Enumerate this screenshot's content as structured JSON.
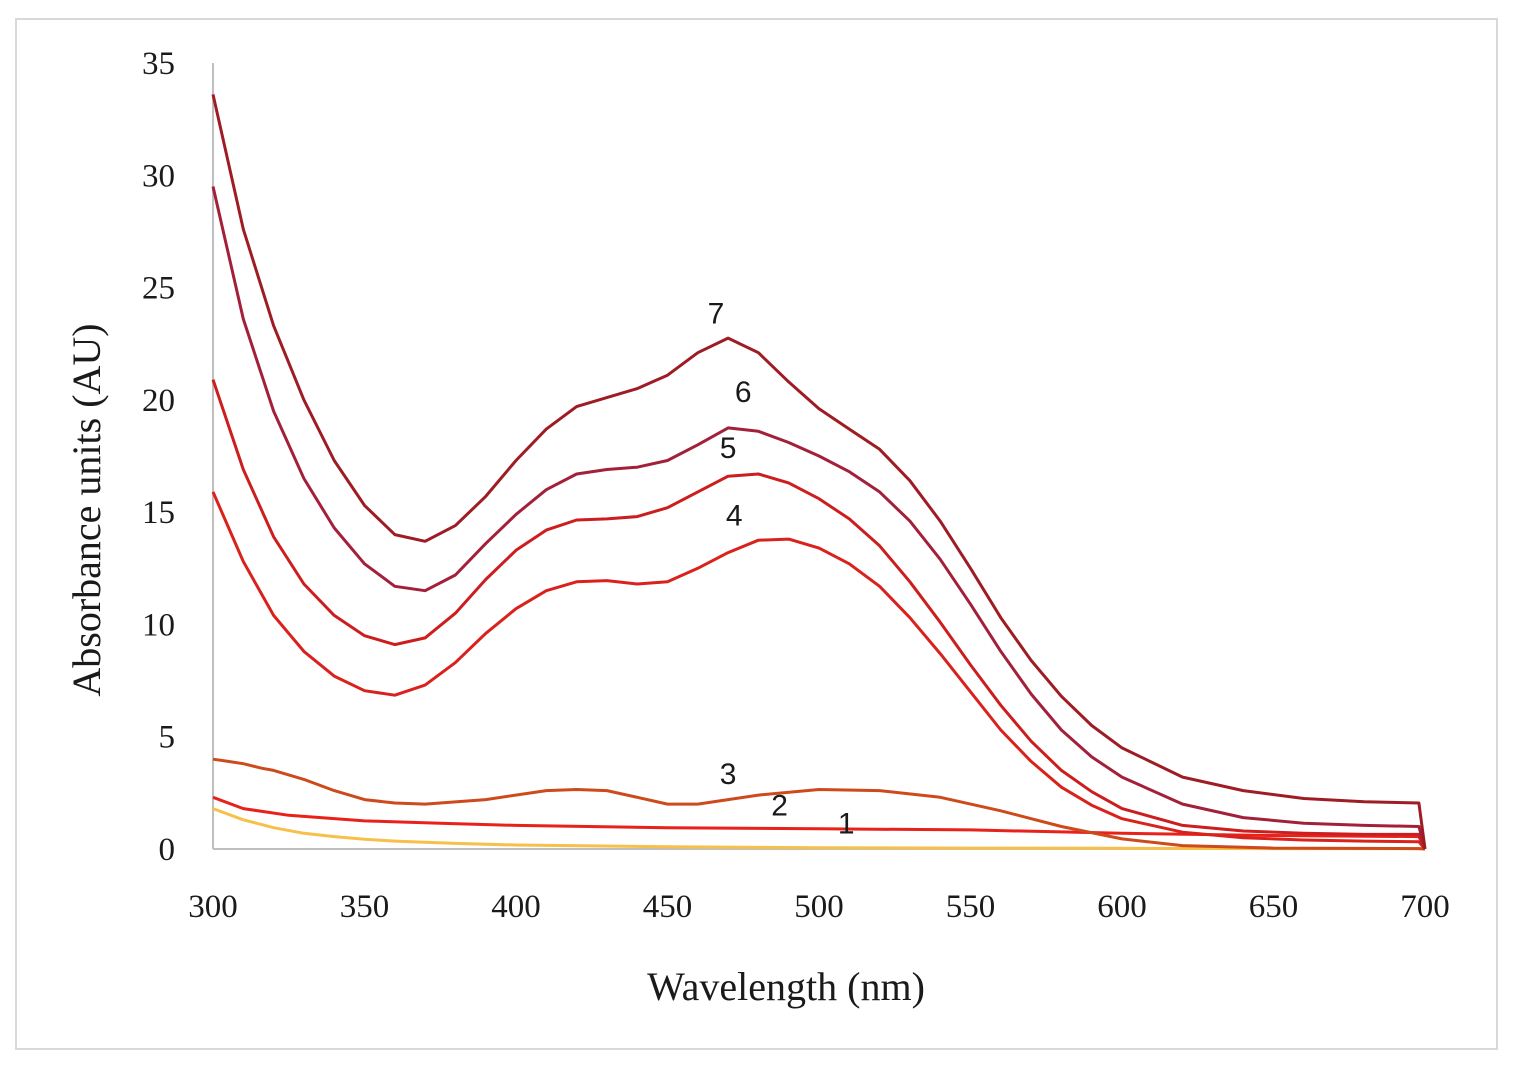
{
  "chart_data": {
    "type": "line",
    "title": "",
    "xlabel": "Wavelength (nm)",
    "ylabel": "Absorbance units (AU)",
    "xlim": [
      300,
      700
    ],
    "ylim": [
      0,
      35
    ],
    "x_ticks": [
      300,
      350,
      400,
      450,
      500,
      550,
      600,
      650,
      700
    ],
    "y_ticks": [
      0,
      5,
      10,
      15,
      20,
      25,
      30,
      35
    ],
    "grid": false,
    "legend": "none (curves labelled inline)",
    "series": [
      {
        "name": "1",
        "color": "#f6c04a",
        "label_at": [
          509,
          0.7
        ],
        "points": [
          [
            300,
            1.8
          ],
          [
            310,
            1.3
          ],
          [
            320,
            0.95
          ],
          [
            330,
            0.7
          ],
          [
            340,
            0.55
          ],
          [
            350,
            0.43
          ],
          [
            360,
            0.35
          ],
          [
            380,
            0.25
          ],
          [
            400,
            0.18
          ],
          [
            450,
            0.1
          ],
          [
            500,
            0.06
          ],
          [
            550,
            0.04
          ],
          [
            600,
            0.03
          ],
          [
            650,
            0.02
          ],
          [
            698,
            0.02
          ],
          [
            700,
            0
          ]
        ]
      },
      {
        "name": "2",
        "color": "#e8211a",
        "label_at": [
          487,
          1.5
        ],
        "points": [
          [
            300,
            2.3
          ],
          [
            310,
            1.8
          ],
          [
            325,
            1.5
          ],
          [
            350,
            1.25
          ],
          [
            375,
            1.15
          ],
          [
            400,
            1.05
          ],
          [
            450,
            0.95
          ],
          [
            500,
            0.9
          ],
          [
            550,
            0.85
          ],
          [
            600,
            0.7
          ],
          [
            650,
            0.6
          ],
          [
            698,
            0.55
          ],
          [
            700,
            0
          ]
        ]
      },
      {
        "name": "3",
        "color": "#cc4a1c",
        "label_at": [
          470,
          2.9
        ],
        "points": [
          [
            300,
            4.0
          ],
          [
            305,
            3.9
          ],
          [
            310,
            3.8
          ],
          [
            316,
            3.6
          ],
          [
            320,
            3.5
          ],
          [
            330,
            3.1
          ],
          [
            340,
            2.6
          ],
          [
            350,
            2.2
          ],
          [
            360,
            2.05
          ],
          [
            370,
            2.0
          ],
          [
            390,
            2.2
          ],
          [
            410,
            2.6
          ],
          [
            420,
            2.65
          ],
          [
            430,
            2.6
          ],
          [
            440,
            2.3
          ],
          [
            450,
            2.0
          ],
          [
            460,
            2.0
          ],
          [
            470,
            2.2
          ],
          [
            480,
            2.4
          ],
          [
            500,
            2.65
          ],
          [
            520,
            2.6
          ],
          [
            540,
            2.3
          ],
          [
            560,
            1.7
          ],
          [
            580,
            1.0
          ],
          [
            600,
            0.45
          ],
          [
            620,
            0.15
          ],
          [
            650,
            0.04
          ],
          [
            698,
            0.02
          ],
          [
            700,
            0
          ]
        ]
      },
      {
        "name": "4",
        "color": "#d9221c",
        "label_at": [
          472,
          14.4
        ],
        "points": [
          [
            300,
            15.9
          ],
          [
            310,
            12.8
          ],
          [
            320,
            10.4
          ],
          [
            330,
            8.8
          ],
          [
            340,
            7.7
          ],
          [
            350,
            7.05
          ],
          [
            360,
            6.85
          ],
          [
            370,
            7.3
          ],
          [
            380,
            8.3
          ],
          [
            390,
            9.6
          ],
          [
            400,
            10.7
          ],
          [
            410,
            11.5
          ],
          [
            420,
            11.9
          ],
          [
            430,
            11.95
          ],
          [
            440,
            11.8
          ],
          [
            450,
            11.9
          ],
          [
            460,
            12.5
          ],
          [
            470,
            13.2
          ],
          [
            480,
            13.75
          ],
          [
            490,
            13.8
          ],
          [
            500,
            13.4
          ],
          [
            510,
            12.7
          ],
          [
            520,
            11.7
          ],
          [
            530,
            10.3
          ],
          [
            540,
            8.7
          ],
          [
            550,
            7.0
          ],
          [
            560,
            5.3
          ],
          [
            570,
            3.9
          ],
          [
            580,
            2.75
          ],
          [
            590,
            1.95
          ],
          [
            600,
            1.35
          ],
          [
            620,
            0.75
          ],
          [
            640,
            0.5
          ],
          [
            660,
            0.4
          ],
          [
            680,
            0.35
          ],
          [
            698,
            0.32
          ],
          [
            700,
            0
          ]
        ]
      },
      {
        "name": "5",
        "color": "#cc1e1e",
        "label_at": [
          470,
          17.4
        ],
        "points": [
          [
            300,
            20.9
          ],
          [
            310,
            16.9
          ],
          [
            320,
            13.9
          ],
          [
            330,
            11.8
          ],
          [
            340,
            10.4
          ],
          [
            350,
            9.5
          ],
          [
            360,
            9.1
          ],
          [
            370,
            9.4
          ],
          [
            380,
            10.5
          ],
          [
            390,
            12.0
          ],
          [
            400,
            13.3
          ],
          [
            410,
            14.2
          ],
          [
            420,
            14.65
          ],
          [
            430,
            14.7
          ],
          [
            440,
            14.8
          ],
          [
            450,
            15.2
          ],
          [
            460,
            15.9
          ],
          [
            470,
            16.6
          ],
          [
            480,
            16.7
          ],
          [
            490,
            16.3
          ],
          [
            500,
            15.6
          ],
          [
            510,
            14.7
          ],
          [
            520,
            13.5
          ],
          [
            530,
            11.9
          ],
          [
            540,
            10.1
          ],
          [
            550,
            8.2
          ],
          [
            560,
            6.4
          ],
          [
            570,
            4.8
          ],
          [
            580,
            3.5
          ],
          [
            590,
            2.55
          ],
          [
            600,
            1.8
          ],
          [
            620,
            1.05
          ],
          [
            640,
            0.8
          ],
          [
            660,
            0.7
          ],
          [
            680,
            0.65
          ],
          [
            698,
            0.65
          ],
          [
            700,
            0
          ]
        ]
      },
      {
        "name": "6",
        "color": "#a3203a",
        "label_at": [
          475,
          19.9
        ],
        "points": [
          [
            300,
            29.5
          ],
          [
            310,
            23.6
          ],
          [
            320,
            19.5
          ],
          [
            330,
            16.5
          ],
          [
            340,
            14.3
          ],
          [
            350,
            12.7
          ],
          [
            360,
            11.7
          ],
          [
            370,
            11.5
          ],
          [
            380,
            12.2
          ],
          [
            390,
            13.6
          ],
          [
            400,
            14.9
          ],
          [
            410,
            16.0
          ],
          [
            420,
            16.7
          ],
          [
            430,
            16.9
          ],
          [
            440,
            17.0
          ],
          [
            450,
            17.3
          ],
          [
            460,
            18.0
          ],
          [
            470,
            18.75
          ],
          [
            480,
            18.6
          ],
          [
            490,
            18.1
          ],
          [
            500,
            17.5
          ],
          [
            510,
            16.8
          ],
          [
            520,
            15.9
          ],
          [
            530,
            14.6
          ],
          [
            540,
            12.9
          ],
          [
            550,
            10.9
          ],
          [
            560,
            8.8
          ],
          [
            570,
            6.9
          ],
          [
            580,
            5.3
          ],
          [
            590,
            4.1
          ],
          [
            600,
            3.2
          ],
          [
            620,
            2.0
          ],
          [
            640,
            1.4
          ],
          [
            660,
            1.15
          ],
          [
            680,
            1.05
          ],
          [
            698,
            1.0
          ],
          [
            700,
            0
          ]
        ]
      },
      {
        "name": "7",
        "color": "#9e1c24",
        "label_at": [
          466,
          23.4
        ],
        "points": [
          [
            300,
            33.6
          ],
          [
            310,
            27.6
          ],
          [
            320,
            23.3
          ],
          [
            330,
            20.0
          ],
          [
            340,
            17.3
          ],
          [
            350,
            15.3
          ],
          [
            360,
            14.0
          ],
          [
            370,
            13.7
          ],
          [
            380,
            14.4
          ],
          [
            390,
            15.7
          ],
          [
            400,
            17.3
          ],
          [
            410,
            18.7
          ],
          [
            420,
            19.7
          ],
          [
            430,
            20.1
          ],
          [
            440,
            20.5
          ],
          [
            450,
            21.1
          ],
          [
            460,
            22.1
          ],
          [
            470,
            22.75
          ],
          [
            480,
            22.1
          ],
          [
            490,
            20.8
          ],
          [
            500,
            19.6
          ],
          [
            510,
            18.7
          ],
          [
            520,
            17.8
          ],
          [
            530,
            16.4
          ],
          [
            540,
            14.6
          ],
          [
            550,
            12.5
          ],
          [
            560,
            10.3
          ],
          [
            570,
            8.4
          ],
          [
            580,
            6.8
          ],
          [
            590,
            5.5
          ],
          [
            600,
            4.5
          ],
          [
            620,
            3.2
          ],
          [
            640,
            2.6
          ],
          [
            660,
            2.25
          ],
          [
            680,
            2.1
          ],
          [
            698,
            2.05
          ],
          [
            700,
            0
          ]
        ]
      }
    ]
  }
}
